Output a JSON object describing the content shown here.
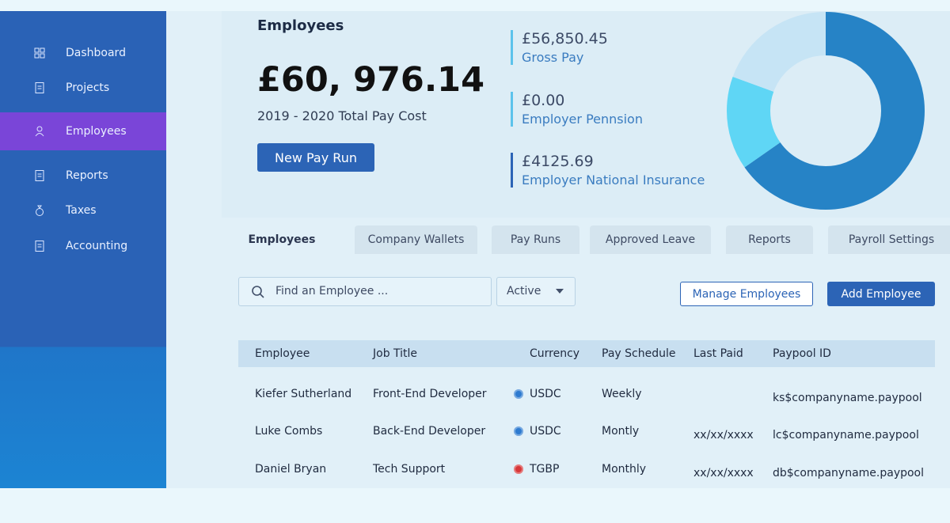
{
  "sidebar": {
    "items": [
      "Dashboard",
      "Projects",
      "Employees",
      "Reports",
      "Taxes",
      "Accounting"
    ]
  },
  "summary": {
    "title": "Employees",
    "total": "£60, 976.14",
    "subtitle": "2019 - 2020 Total Pay Cost",
    "button": "New Pay Run",
    "stats": [
      {
        "value": "£56,850.45",
        "label": "Gross Pay"
      },
      {
        "value": "£0.00",
        "label": "Employer Pennsion"
      },
      {
        "value": "£4125.69",
        "label": "Employer National Insurance"
      }
    ]
  },
  "tabs": [
    "Employees",
    "Company Wallets",
    "Pay Runs",
    "Approved Leave",
    "Reports",
    "Payroll Settings"
  ],
  "toolbar": {
    "search_placeholder": "Find an Employee ...",
    "filter": "Active",
    "manage_button": "Manage Employees",
    "add_button": "Add Employee"
  },
  "table": {
    "headers": [
      "Employee",
      "Job Title",
      "Currency",
      "Pay Schedule",
      "Last Paid",
      "Paypool ID"
    ],
    "rows": [
      [
        "Kiefer Sutherland",
        "Front-End Developer",
        "USDC",
        "Weekly",
        null,
        "ks$companyname.paypool"
      ],
      [
        "Luke Combs",
        "Back-End Developer",
        "USDC",
        "Montly",
        "xx/xx/xxxx",
        "lc$companyname.paypool"
      ],
      [
        "Daniel Bryan",
        "Tech Support",
        "TGBP",
        "Monthly",
        "xx/xx/xxxx",
        "db$companyname.paypool"
      ]
    ]
  }
}
